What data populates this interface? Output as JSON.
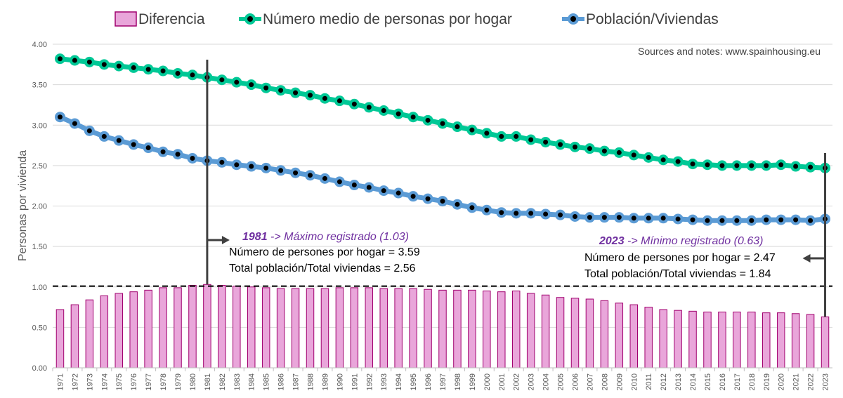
{
  "chart_data": {
    "type": "bar+line",
    "ylabel": "Personas por vivienda",
    "ylim": [
      0,
      4
    ],
    "yticks": [
      "0.00",
      "0.50",
      "1.00",
      "1.50",
      "2.00",
      "2.50",
      "3.00",
      "3.50",
      "4.00"
    ],
    "reference_line": 1.01,
    "note": "Sources and notes: www.spainhousing.eu",
    "legend": {
      "placement": "top",
      "entries": [
        "Diferencia",
        "Número medio de personas por hogar",
        "Población/Viviendas"
      ]
    },
    "x": [
      "1971",
      "1972",
      "1973",
      "1974",
      "1975",
      "1976",
      "1977",
      "1978",
      "1979",
      "1980",
      "1981",
      "1982",
      "1983",
      "1984",
      "1985",
      "1986",
      "1987",
      "1988",
      "1989",
      "1990",
      "1991",
      "1992",
      "1993",
      "1994",
      "1995",
      "1996",
      "1997",
      "1998",
      "1999",
      "2000",
      "2001",
      "2002",
      "2003",
      "2004",
      "2005",
      "2006",
      "2007",
      "2008",
      "2009",
      "2010",
      "2011",
      "2012",
      "2013",
      "2014",
      "2015",
      "2016",
      "2017",
      "2018",
      "2019",
      "2020",
      "2021",
      "2022",
      "2023"
    ],
    "series": [
      {
        "name": "Diferencia",
        "kind": "bar",
        "color": "#e9a6da",
        "edge": "#a0006e",
        "values": [
          0.72,
          0.78,
          0.84,
          0.89,
          0.92,
          0.94,
          0.96,
          0.99,
          0.99,
          1.02,
          1.03,
          1.02,
          1.01,
          1.0,
          0.99,
          0.98,
          0.98,
          0.98,
          0.98,
          0.99,
          0.99,
          0.99,
          0.98,
          0.98,
          0.98,
          0.97,
          0.96,
          0.96,
          0.96,
          0.95,
          0.94,
          0.95,
          0.92,
          0.9,
          0.87,
          0.86,
          0.85,
          0.83,
          0.8,
          0.78,
          0.75,
          0.72,
          0.71,
          0.7,
          0.69,
          0.69,
          0.69,
          0.69,
          0.68,
          0.68,
          0.67,
          0.66,
          0.63
        ]
      },
      {
        "name": "Número medio de personas por hogar",
        "kind": "line",
        "color": "#00c896",
        "values": [
          3.82,
          3.8,
          3.78,
          3.75,
          3.73,
          3.71,
          3.69,
          3.67,
          3.64,
          3.62,
          3.59,
          3.56,
          3.53,
          3.5,
          3.46,
          3.43,
          3.4,
          3.37,
          3.33,
          3.3,
          3.26,
          3.22,
          3.18,
          3.14,
          3.1,
          3.06,
          3.02,
          2.98,
          2.94,
          2.9,
          2.86,
          2.86,
          2.82,
          2.79,
          2.76,
          2.73,
          2.71,
          2.68,
          2.66,
          2.63,
          2.6,
          2.57,
          2.55,
          2.52,
          2.51,
          2.5,
          2.5,
          2.5,
          2.5,
          2.51,
          2.49,
          2.48,
          2.47
        ]
      },
      {
        "name": "Población/Viviendas",
        "kind": "line",
        "color": "#5b9bd5",
        "values": [
          3.1,
          3.02,
          2.93,
          2.86,
          2.81,
          2.76,
          2.72,
          2.67,
          2.64,
          2.59,
          2.56,
          2.54,
          2.51,
          2.49,
          2.47,
          2.44,
          2.41,
          2.38,
          2.34,
          2.3,
          2.26,
          2.23,
          2.19,
          2.16,
          2.12,
          2.09,
          2.06,
          2.02,
          1.98,
          1.95,
          1.92,
          1.91,
          1.91,
          1.9,
          1.89,
          1.87,
          1.86,
          1.86,
          1.86,
          1.85,
          1.85,
          1.85,
          1.84,
          1.83,
          1.82,
          1.82,
          1.82,
          1.82,
          1.83,
          1.83,
          1.83,
          1.82,
          1.84
        ]
      }
    ],
    "annotations": [
      {
        "year": "1981",
        "title_year": "1981",
        "title_rest": " -> Máximo registrado (1.03)",
        "line1": "Número de persones por hogar = 3.59",
        "line2": "Total población/Total viviendas = 2.56"
      },
      {
        "year": "2023",
        "title_year": "2023",
        "title_rest": " -> Mínimo registrado (0.63)",
        "line1": "Número de persones por hogar = 2.47",
        "line2": "Total población/Total viviendas = 1.84"
      }
    ]
  }
}
